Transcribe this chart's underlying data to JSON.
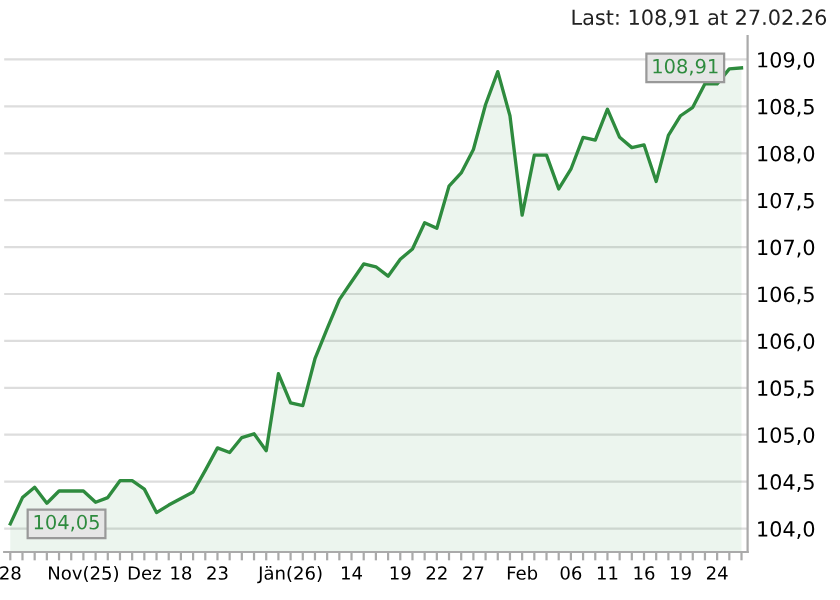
{
  "chart_data": {
    "type": "area",
    "categories": [
      "28",
      null,
      null,
      null,
      null,
      null,
      "Nov(25)",
      null,
      null,
      null,
      null,
      "Dez",
      null,
      null,
      "18",
      null,
      null,
      "23",
      null,
      null,
      null,
      null,
      null,
      "Jän(26)",
      null,
      null,
      null,
      null,
      "14",
      null,
      null,
      null,
      "19",
      null,
      null,
      "22",
      null,
      null,
      "27",
      null,
      null,
      null,
      "Feb",
      null,
      null,
      null,
      "06",
      null,
      null,
      "11",
      null,
      null,
      "16",
      null,
      null,
      "19",
      null,
      null,
      "24",
      null,
      null
    ],
    "series": [
      {
        "color": "#2e8b3e",
        "values": [
          104.05,
          104.33,
          104.44,
          104.27,
          104.4,
          104.4,
          104.4,
          104.28,
          104.33,
          104.51,
          104.51,
          104.42,
          104.17,
          104.25,
          104.32,
          104.39,
          104.62,
          104.86,
          104.81,
          104.97,
          105.01,
          104.83,
          105.65,
          105.34,
          105.31,
          105.81,
          106.13,
          106.44,
          106.63,
          106.82,
          106.79,
          106.69,
          106.87,
          106.98,
          107.26,
          107.2,
          107.65,
          107.79,
          108.04,
          108.52,
          108.87,
          108.4,
          107.34,
          107.98,
          107.98,
          107.62,
          107.83,
          108.17,
          108.14,
          108.47,
          108.17,
          108.06,
          108.09,
          107.7,
          108.19,
          108.4,
          108.49,
          108.74,
          108.74,
          108.9,
          108.91
        ]
      }
    ],
    "ylim": [
      103.75,
      109.25
    ],
    "yticks": [
      {
        "value": 104,
        "label": "104,0"
      },
      {
        "value": 104.5,
        "label": "104,5"
      },
      {
        "value": 105,
        "label": "105,0"
      },
      {
        "value": 105.5,
        "label": "105,5"
      },
      {
        "value": 106,
        "label": "106,0"
      },
      {
        "value": 106.5,
        "label": "106,5"
      },
      {
        "value": 107,
        "label": "107,0"
      },
      {
        "value": 107.5,
        "label": "107,5"
      },
      {
        "value": 108,
        "label": "108,0"
      },
      {
        "value": 108.5,
        "label": "108,5"
      },
      {
        "value": 109,
        "label": "109,0"
      }
    ],
    "grid": "y",
    "annotations": [
      "Last: 108,91 at 27.02.26",
      {
        "text": "108,91",
        "y": 108.91
      },
      {
        "text": "104,05",
        "y": 104.05
      }
    ]
  }
}
